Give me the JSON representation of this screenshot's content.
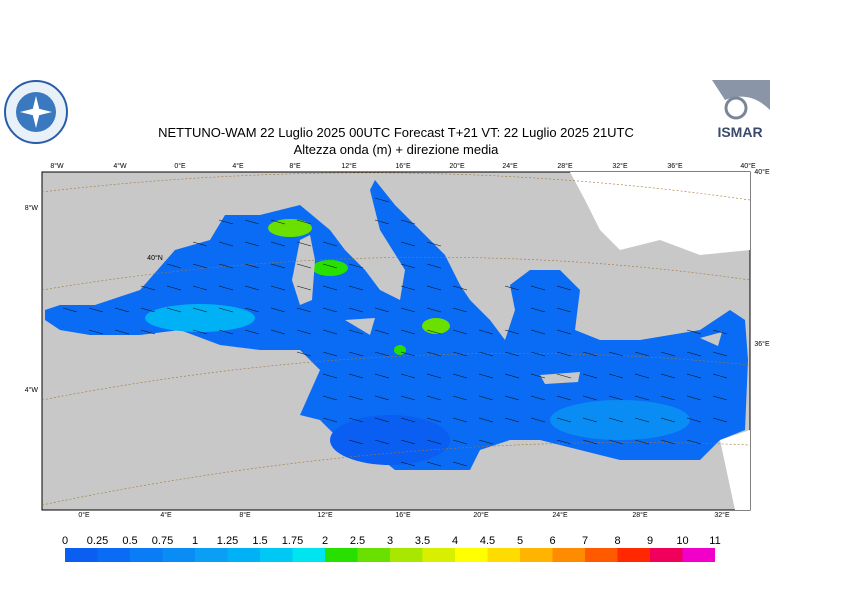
{
  "header": {
    "title": "NETTUNO-WAM  22  Luglio   2025 00UTC Forecast T+21 VT: 22  Luglio   2025 21UTC",
    "subtitle": "Altezza onda (m) + direzione media"
  },
  "map": {
    "top_labels": [
      "8°W",
      "4°W",
      "0°E",
      "4°E",
      "8°E",
      "12°E",
      "16°E",
      "20°E",
      "24°E",
      "28°E",
      "32°E",
      "36°E",
      "40°E"
    ],
    "bottom_labels": [
      "0°E",
      "4°E",
      "8°E",
      "12°E",
      "16°E",
      "20°E",
      "24°E",
      "28°E",
      "32°E"
    ],
    "left_labels": [
      "8°W",
      "4°W"
    ],
    "right_labels": [
      "40°E",
      "36°E"
    ],
    "inner_labels": [
      "40°N"
    ]
  },
  "legend": {
    "labels": [
      0,
      0.25,
      0.5,
      0.75,
      1,
      1.25,
      1.5,
      1.75,
      2,
      2.5,
      3,
      3.5,
      4,
      4.5,
      5,
      6,
      7,
      8,
      9,
      10,
      11
    ],
    "colors": [
      "#0a5ef2",
      "#0a6cf4",
      "#0a7cf5",
      "#0a8cf5",
      "#0a9ef5",
      "#00b2f5",
      "#00c8f5",
      "#00e4f0",
      "#28e000",
      "#6ae000",
      "#a8e800",
      "#d8f000",
      "#ffff00",
      "#ffdc00",
      "#ffb400",
      "#ff8c00",
      "#ff5a00",
      "#ff2800",
      "#f0005a",
      "#f000c8"
    ]
  }
}
